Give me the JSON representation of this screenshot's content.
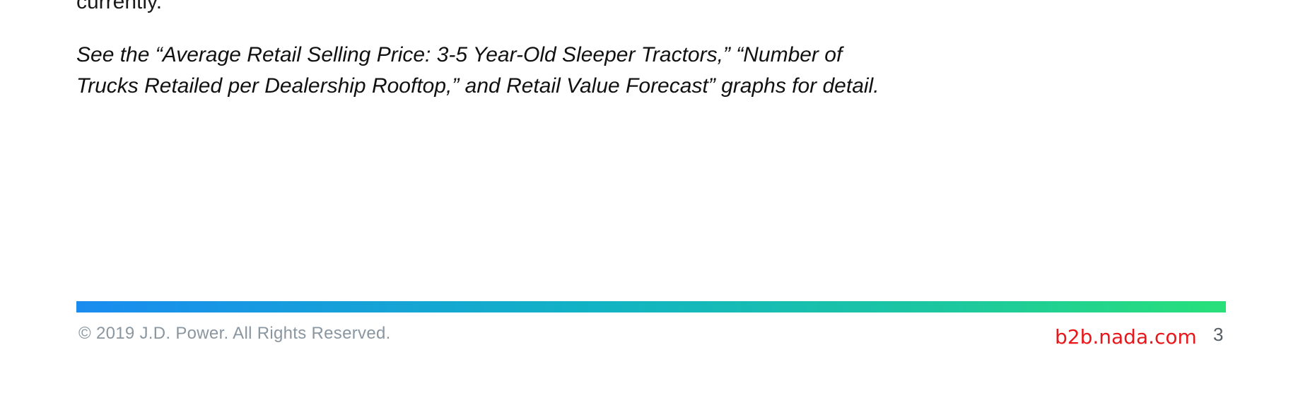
{
  "body": {
    "partial_line": "currently.",
    "note_line_1": "See the “Average Retail Selling Price: 3-5 Year-Old Sleeper Tractors,” “Number of",
    "note_line_2": "Trucks Retailed per Dealership Rooftop,” and Retail Value Forecast” graphs for detail."
  },
  "footer": {
    "copyright": "© 2019 J.D. Power. All Rights Reserved.",
    "website": "b2b.nada.com",
    "page_number": "3",
    "bar_colors": [
      "#1a8cf0",
      "#12b3c4",
      "#1cc7a0",
      "#28e07a"
    ],
    "website_color": "#e8171b"
  }
}
